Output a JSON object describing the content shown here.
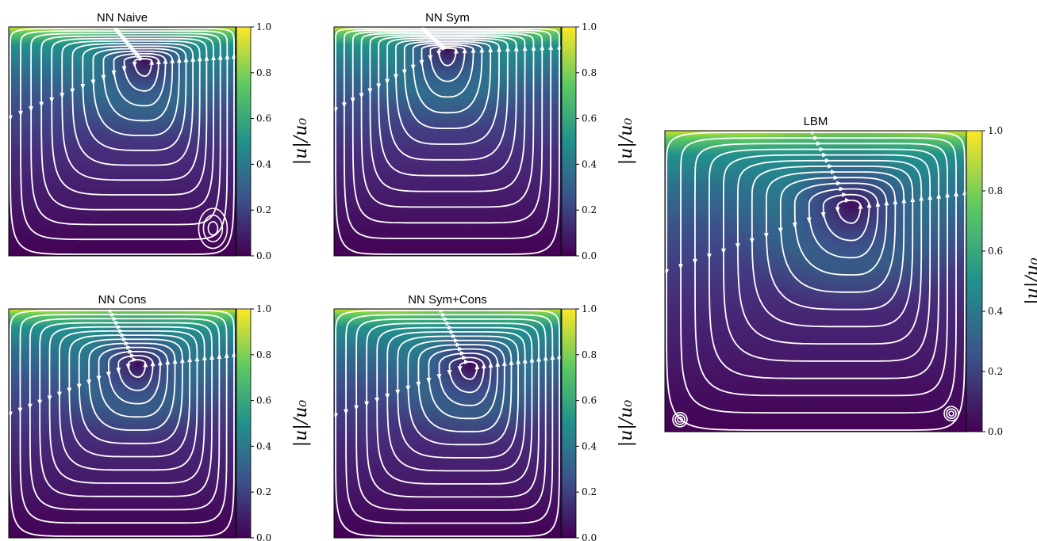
{
  "colorbar": {
    "label": "|u|/u₀",
    "ticks": [
      "0.0",
      "0.2",
      "0.4",
      "0.6",
      "0.8",
      "1.0"
    ],
    "colors": [
      "#440154",
      "#3b528b",
      "#21918c",
      "#5ec962",
      "#fde725"
    ]
  },
  "chart_data": [
    {
      "type": "heatmap",
      "title": "NN Naive",
      "colorbar_label": "|u|/u₀",
      "colorbar_range": [
        0.0,
        1.0
      ],
      "colorbar_ticks": [
        0.0,
        0.2,
        0.4,
        0.6,
        0.8,
        1.0
      ],
      "overlay": "streamlines (white, with arrows)",
      "primary_vortex_center": [
        0.6,
        0.85
      ],
      "secondary_vortex": "bottom-right corner",
      "lid_velocity_magnitude": 1.0
    },
    {
      "type": "heatmap",
      "title": "NN Sym",
      "colorbar_label": "|u|/u₀",
      "colorbar_range": [
        0.0,
        1.0
      ],
      "colorbar_ticks": [
        0.0,
        0.2,
        0.4,
        0.6,
        0.8,
        1.0
      ],
      "overlay": "streamlines (white, with arrows)",
      "primary_vortex_center": [
        0.5,
        0.9
      ],
      "lid_velocity_magnitude": 1.0
    },
    {
      "type": "heatmap",
      "title": "NN Cons",
      "colorbar_label": "|u|/u₀",
      "colorbar_range": [
        0.0,
        1.0
      ],
      "colorbar_ticks": [
        0.0,
        0.2,
        0.4,
        0.6,
        0.8,
        1.0
      ],
      "overlay": "streamlines (white, with arrows)",
      "primary_vortex_center": [
        0.57,
        0.76
      ],
      "lid_velocity_magnitude": 1.0
    },
    {
      "type": "heatmap",
      "title": "NN Sym+Cons",
      "colorbar_label": "|u|/u₀",
      "colorbar_range": [
        0.0,
        1.0
      ],
      "colorbar_ticks": [
        0.0,
        0.2,
        0.4,
        0.6,
        0.8,
        1.0
      ],
      "overlay": "streamlines (white, with arrows)",
      "primary_vortex_center": [
        0.6,
        0.75
      ],
      "lid_velocity_magnitude": 1.0
    },
    {
      "type": "heatmap",
      "title": "LBM",
      "colorbar_label": "|u|/u₀",
      "colorbar_range": [
        0.0,
        1.0
      ],
      "colorbar_ticks": [
        0.0,
        0.2,
        0.4,
        0.6,
        0.8,
        1.0
      ],
      "overlay": "streamlines (white, with arrows)",
      "primary_vortex_center": [
        0.62,
        0.75
      ],
      "secondary_vortex": "bottom corners",
      "lid_velocity_magnitude": 1.0
    }
  ]
}
